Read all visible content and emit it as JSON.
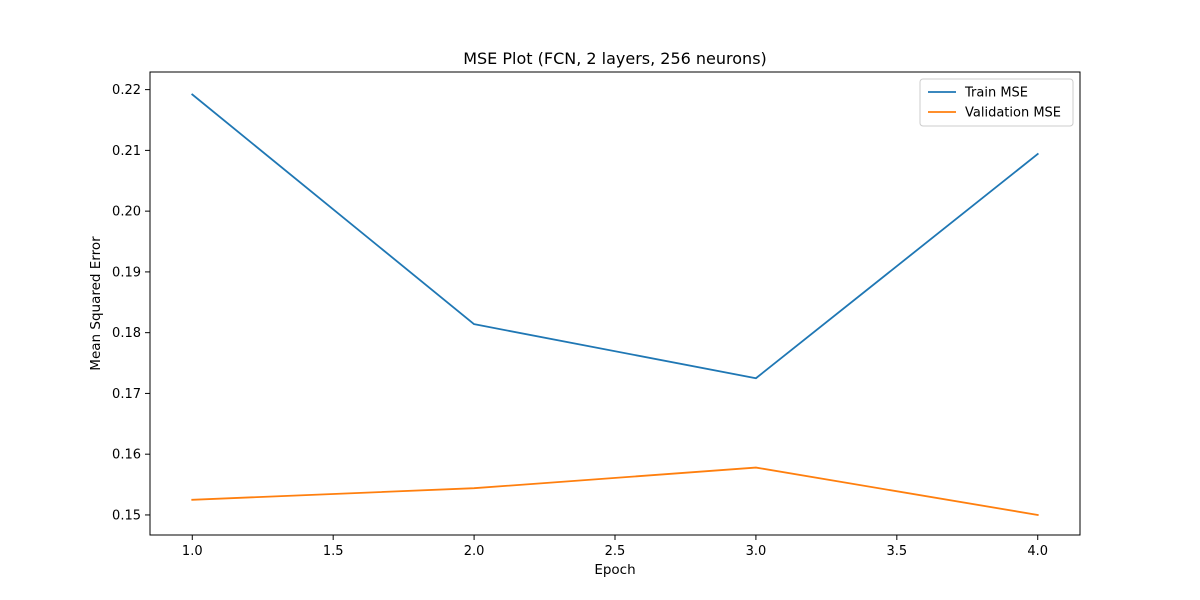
{
  "chart_data": {
    "type": "line",
    "title": "MSE Plot (FCN, 2 layers, 256 neurons)",
    "xlabel": "Epoch",
    "ylabel": "Mean Squared Error",
    "x": [
      1.0,
      2.0,
      3.0,
      4.0
    ],
    "xlim": [
      0.85,
      4.15
    ],
    "ylim": [
      0.1467,
      0.2229
    ],
    "xticks": [
      1.0,
      1.5,
      2.0,
      2.5,
      3.0,
      3.5,
      4.0
    ],
    "xtick_labels": [
      "1.0",
      "1.5",
      "2.0",
      "2.5",
      "3.0",
      "3.5",
      "4.0"
    ],
    "yticks": [
      0.15,
      0.16,
      0.17,
      0.18,
      0.19,
      0.2,
      0.21,
      0.22
    ],
    "ytick_labels": [
      "0.15",
      "0.16",
      "0.17",
      "0.18",
      "0.19",
      "0.20",
      "0.21",
      "0.22"
    ],
    "grid": false,
    "legend_position": "top-right",
    "series": [
      {
        "name": "Train MSE",
        "color": "#1f77b4",
        "values": [
          0.2192,
          0.1814,
          0.1725,
          0.2094
        ]
      },
      {
        "name": "Validation MSE",
        "color": "#ff7f0e",
        "values": [
          0.1525,
          0.1544,
          0.1578,
          0.15
        ]
      }
    ]
  }
}
